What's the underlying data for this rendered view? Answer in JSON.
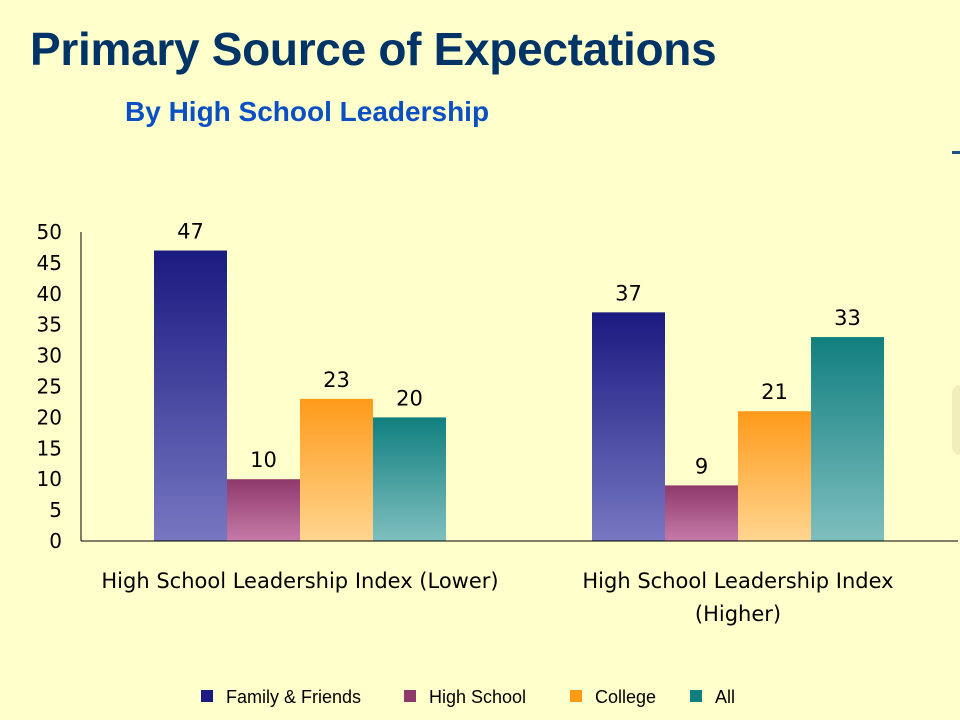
{
  "slide": {
    "title": "Primary Source of Expectations",
    "subtitle": "By High School Leadership"
  },
  "chart_data": {
    "type": "bar",
    "title": "Primary Source of Expectations",
    "subtitle": "By High School Leadership",
    "xlabel": "",
    "ylabel": "",
    "ylim": [
      0,
      50
    ],
    "yticks": [
      0,
      5,
      10,
      15,
      20,
      25,
      30,
      35,
      40,
      45,
      50
    ],
    "grid": false,
    "legend_position": "bottom",
    "categories": [
      [
        "High School Leadership Index (Lower)"
      ],
      [
        "High School Leadership Index",
        "(Higher)"
      ]
    ],
    "series": [
      {
        "name": "Family & Friends",
        "values": [
          47,
          37
        ],
        "color_top": "#1A1A80",
        "color_bottom": "#7777C2",
        "legend_color": "#1A1A80"
      },
      {
        "name": "High School",
        "values": [
          10,
          9
        ],
        "color_top": "#8E3A6C",
        "color_bottom": "#C67AA8",
        "legend_color": "#8E3A6C"
      },
      {
        "name": "College",
        "values": [
          23,
          21
        ],
        "color_top": "#FF9A1A",
        "color_bottom": "#FFD590",
        "legend_color": "#FF9A1A"
      },
      {
        "name": "All",
        "values": [
          20,
          33
        ],
        "color_top": "#117F7F",
        "color_bottom": "#7FBFBF",
        "legend_color": "#117F7F"
      }
    ]
  }
}
